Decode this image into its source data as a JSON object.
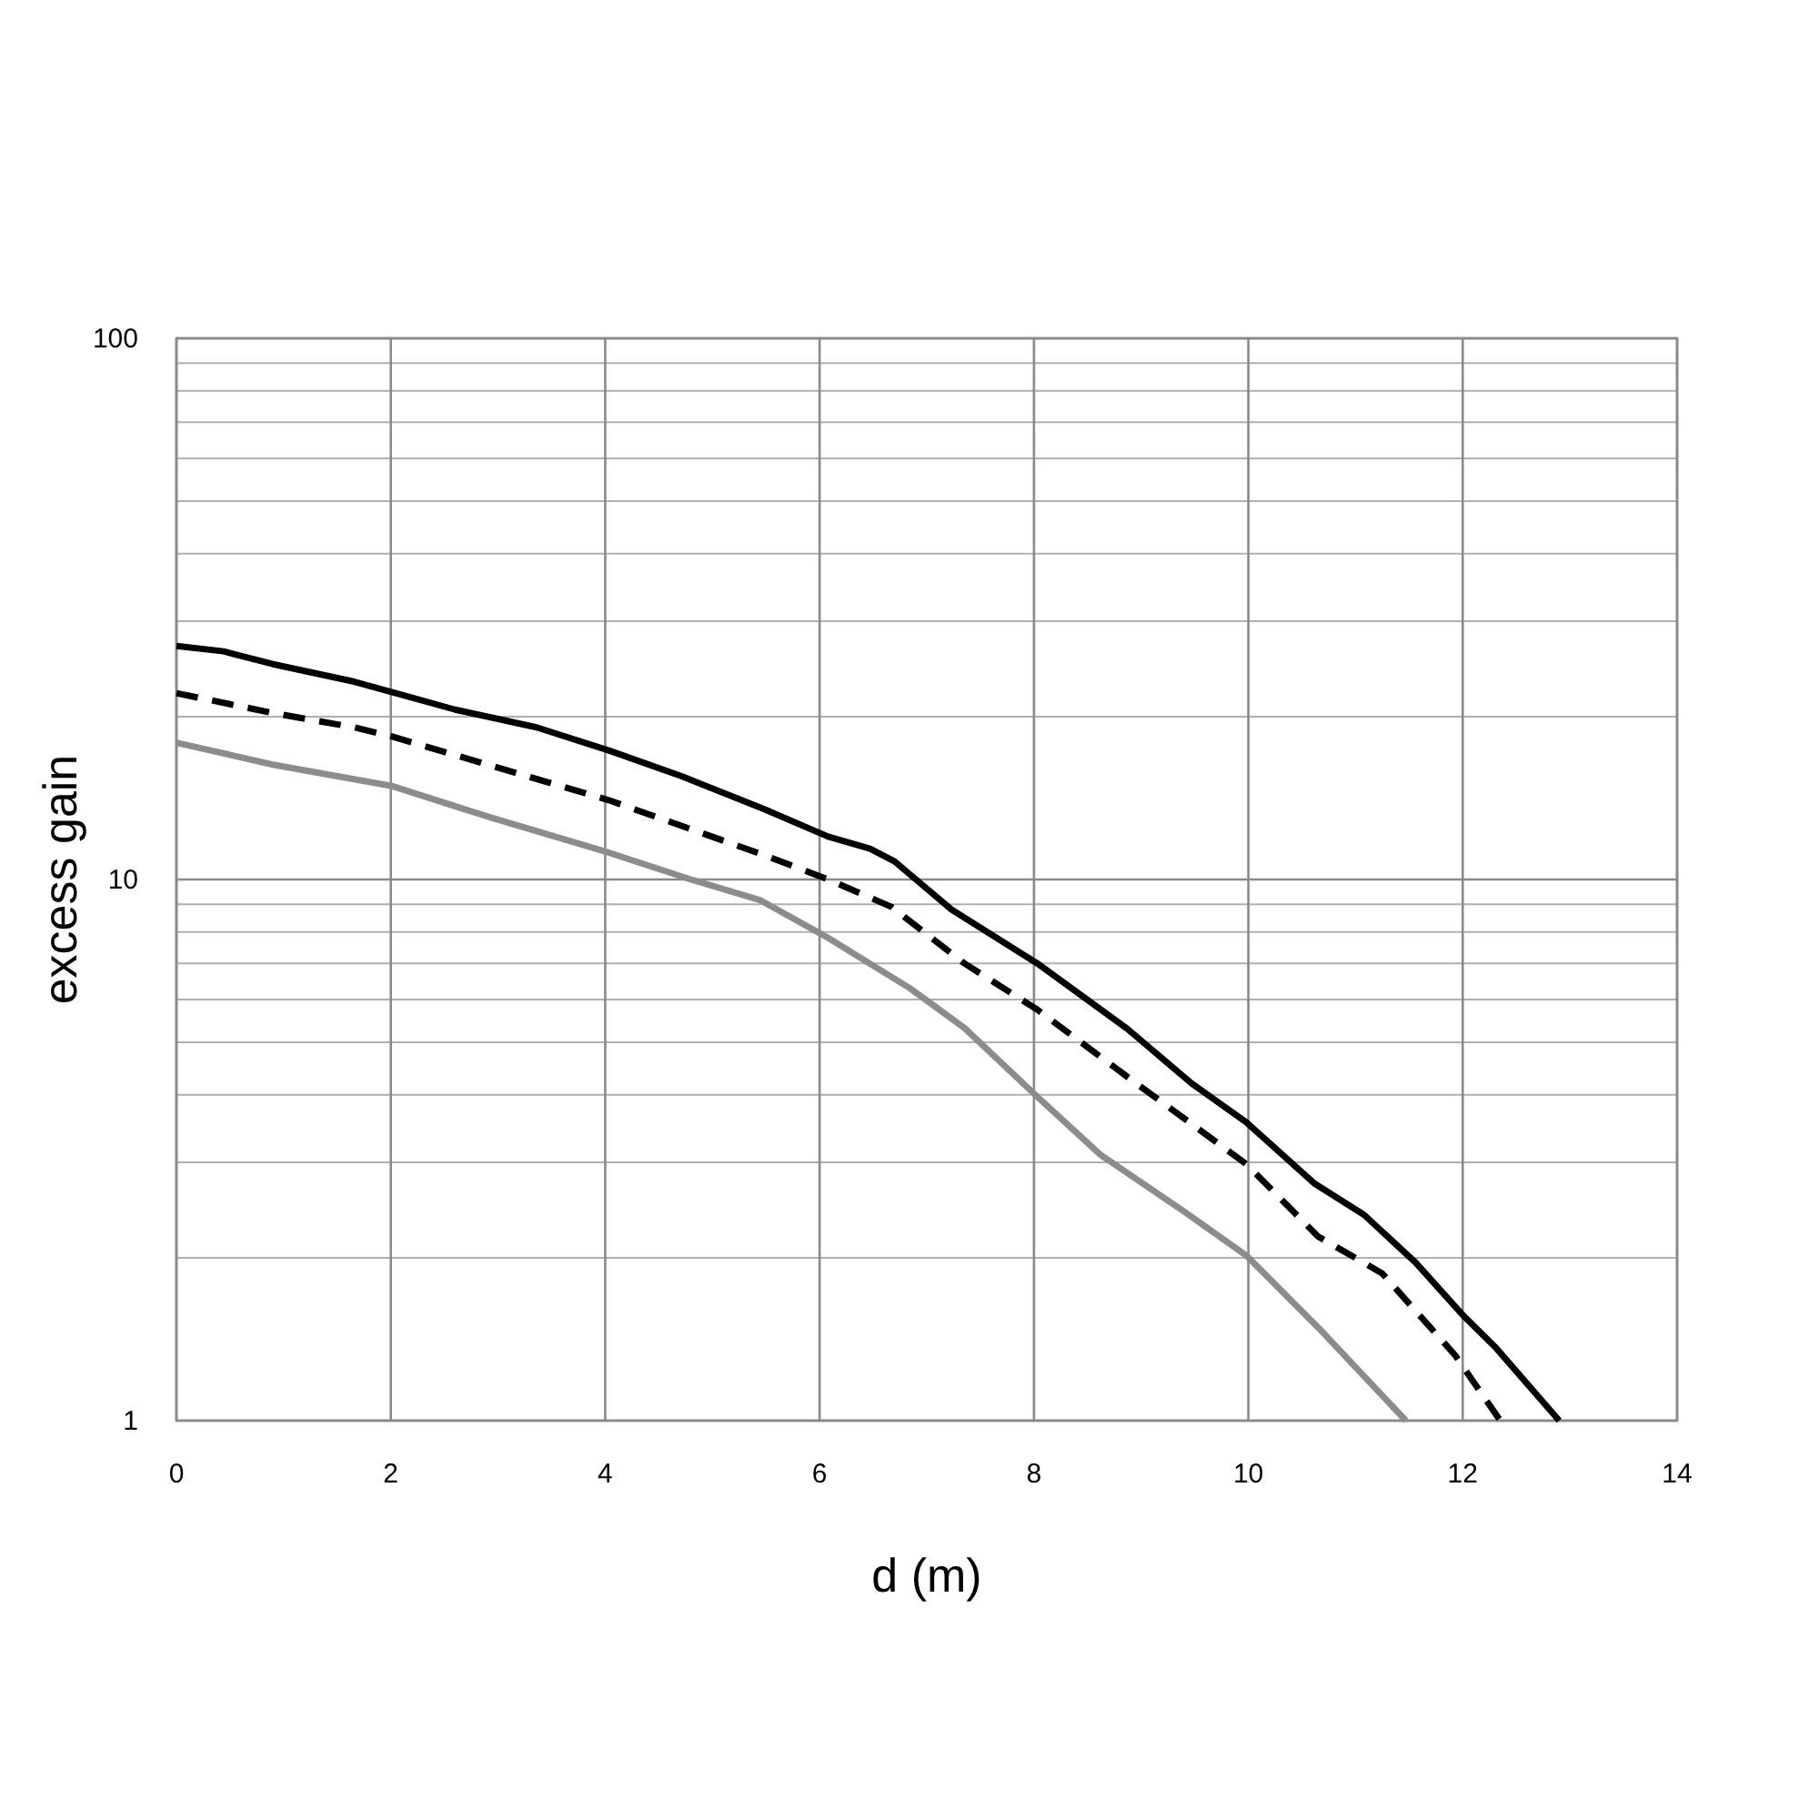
{
  "chart_data": {
    "type": "line",
    "xlabel": "d (m)",
    "ylabel": "excess gain",
    "log": "y",
    "grid": true,
    "xlim": [
      0,
      14
    ],
    "xticks": [
      0,
      2,
      4,
      6,
      8,
      10,
      12,
      14
    ],
    "ylim": [
      1,
      100
    ],
    "yticks": [
      1,
      10,
      100
    ],
    "series": [
      {
        "color": "#000000",
        "line_style": "solid",
        "x": [
          0,
          0.44,
          0.9,
          1.66,
          2.6,
          3.36,
          4.04,
          4.72,
          5.48,
          6.08,
          6.47,
          6.7,
          7.23,
          8.03,
          8.87,
          9.47,
          9.98,
          10.62,
          11.08,
          11.56,
          12.01,
          12.3,
          12.9
        ],
        "values": [
          27,
          26.4,
          25,
          23.2,
          20.6,
          19.1,
          17.3,
          15.5,
          13.5,
          12,
          11.4,
          10.8,
          8.8,
          7,
          5.3,
          4.2,
          3.56,
          2.74,
          2.4,
          1.96,
          1.56,
          1.37,
          1
        ]
      },
      {
        "color": "#000000",
        "line_style": "dashed",
        "x": [
          0,
          0.9,
          1.66,
          2,
          2.77,
          4.04,
          5.48,
          6.08,
          6.67,
          7.35,
          8.03,
          8.87,
          9.98,
          10.65,
          11.25,
          11.93,
          12.35
        ],
        "values": [
          22.1,
          20.3,
          19.1,
          18.4,
          16.6,
          14,
          11.1,
          10,
          8.9,
          7,
          5.75,
          4.32,
          2.98,
          2.19,
          1.87,
          1.32,
          1
        ]
      },
      {
        "color": "#8c8c8c",
        "line_style": "solid",
        "x": [
          0,
          0.9,
          2,
          2.94,
          4.04,
          4.8,
          5.45,
          6.08,
          6.84,
          7.35,
          8.03,
          8.62,
          9.38,
          9.98,
          10.66,
          11.47
        ],
        "values": [
          17.9,
          16.3,
          14.9,
          13,
          11.2,
          10,
          9.15,
          7.8,
          6.3,
          5.32,
          3.97,
          3.1,
          2.45,
          2.02,
          1.48,
          1
        ]
      }
    ]
  }
}
